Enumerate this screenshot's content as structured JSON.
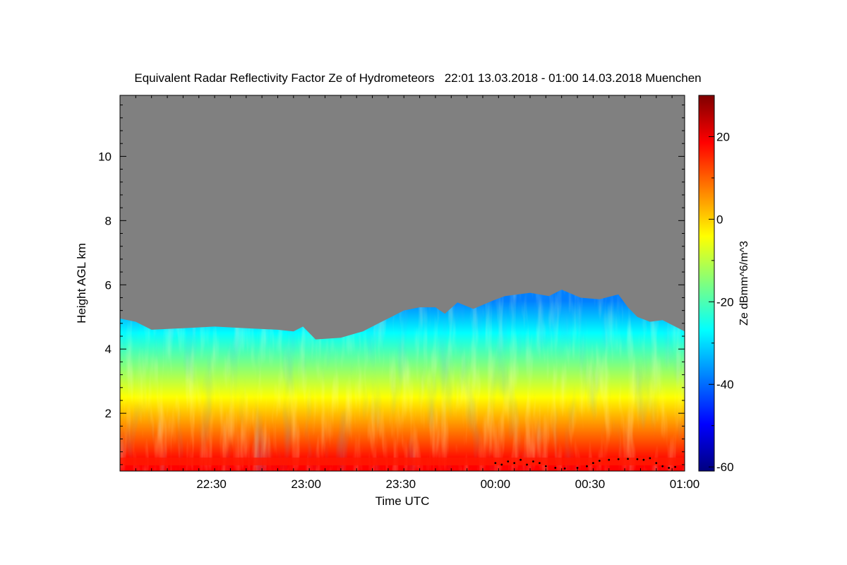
{
  "chart_data": {
    "type": "heatmap",
    "title": "Equivalent Radar Reflectivity Factor Ze of Hydrometeors   22:01 13.03.2018 - 01:00 14.03.2018 Muenchen",
    "xlabel": "Time UTC",
    "ylabel": "Height AGL km",
    "colorbar_label": "Ze dBmm^6/m^3",
    "x_tick_labels": [
      "22:30",
      "23:00",
      "23:30",
      "00:00",
      "00:30",
      "01:00"
    ],
    "x_tick_minutes": [
      29,
      59,
      89,
      119,
      149,
      179
    ],
    "xlim_minutes": [
      0,
      179
    ],
    "y_tick_labels": [
      "2",
      "4",
      "6",
      "8",
      "10"
    ],
    "y_tick_values": [
      2,
      4,
      6,
      8,
      10
    ],
    "ylim": [
      0.2,
      11.9
    ],
    "colorbar_tick_labels": [
      "20",
      "0",
      "-20",
      "-40",
      "-60"
    ],
    "colorbar_tick_values": [
      20,
      0,
      -20,
      -40,
      -60
    ],
    "colorbar_range": [
      -61,
      30
    ],
    "no_data_color": "#808080",
    "colormap": [
      "#00007f",
      "#0000ff",
      "#007fff",
      "#00ffff",
      "#7fff7f",
      "#ffff00",
      "#ff7f00",
      "#ff0000",
      "#7f0000"
    ],
    "echo_top_km": [
      {
        "t": 0,
        "top": 4.95
      },
      {
        "t": 5,
        "top": 4.85
      },
      {
        "t": 10,
        "top": 4.6
      },
      {
        "t": 20,
        "top": 4.65
      },
      {
        "t": 30,
        "top": 4.7
      },
      {
        "t": 40,
        "top": 4.65
      },
      {
        "t": 50,
        "top": 4.6
      },
      {
        "t": 55,
        "top": 4.55
      },
      {
        "t": 58,
        "top": 4.7
      },
      {
        "t": 62,
        "top": 4.3
      },
      {
        "t": 70,
        "top": 4.35
      },
      {
        "t": 77,
        "top": 4.55
      },
      {
        "t": 82,
        "top": 4.8
      },
      {
        "t": 86,
        "top": 5.0
      },
      {
        "t": 90,
        "top": 5.2
      },
      {
        "t": 95,
        "top": 5.3
      },
      {
        "t": 100,
        "top": 5.3
      },
      {
        "t": 103,
        "top": 5.1
      },
      {
        "t": 107,
        "top": 5.45
      },
      {
        "t": 112,
        "top": 5.25
      },
      {
        "t": 118,
        "top": 5.5
      },
      {
        "t": 122,
        "top": 5.65
      },
      {
        "t": 130,
        "top": 5.75
      },
      {
        "t": 136,
        "top": 5.65
      },
      {
        "t": 140,
        "top": 5.85
      },
      {
        "t": 146,
        "top": 5.6
      },
      {
        "t": 152,
        "top": 5.55
      },
      {
        "t": 158,
        "top": 5.7
      },
      {
        "t": 161,
        "top": 5.3
      },
      {
        "t": 164,
        "top": 5.0
      },
      {
        "t": 168,
        "top": 4.85
      },
      {
        "t": 172,
        "top": 4.9
      },
      {
        "t": 176,
        "top": 4.7
      },
      {
        "t": 179,
        "top": 4.55
      }
    ],
    "reflectivity_profile": [
      {
        "height_km": 0.5,
        "Ze_dBZ": 20
      },
      {
        "height_km": 1.5,
        "Ze_dBZ": 8
      },
      {
        "height_km": 2.5,
        "Ze_dBZ": 0
      },
      {
        "height_km": 3.5,
        "Ze_dBZ": -15
      },
      {
        "height_km": 4.5,
        "Ze_dBZ": -30
      },
      {
        "height_km": 5.5,
        "Ze_dBZ": -40
      }
    ],
    "cloud_base_points": [
      {
        "t": 119,
        "h": 0.45
      },
      {
        "t": 121,
        "h": 0.4
      },
      {
        "t": 123,
        "h": 0.5
      },
      {
        "t": 125,
        "h": 0.45
      },
      {
        "t": 127,
        "h": 0.55
      },
      {
        "t": 129,
        "h": 0.4
      },
      {
        "t": 131,
        "h": 0.5
      },
      {
        "t": 133,
        "h": 0.45
      },
      {
        "t": 135,
        "h": 0.35
      },
      {
        "t": 138,
        "h": 0.3
      },
      {
        "t": 141,
        "h": 0.28
      },
      {
        "t": 145,
        "h": 0.3
      },
      {
        "t": 148,
        "h": 0.35
      },
      {
        "t": 150,
        "h": 0.45
      },
      {
        "t": 152,
        "h": 0.52
      },
      {
        "t": 155,
        "h": 0.55
      },
      {
        "t": 158,
        "h": 0.57
      },
      {
        "t": 161,
        "h": 0.58
      },
      {
        "t": 164,
        "h": 0.57
      },
      {
        "t": 166,
        "h": 0.55
      },
      {
        "t": 168,
        "h": 0.6
      },
      {
        "t": 170,
        "h": 0.45
      },
      {
        "t": 172,
        "h": 0.35
      },
      {
        "t": 174,
        "h": 0.3
      },
      {
        "t": 176,
        "h": 0.33
      }
    ]
  }
}
